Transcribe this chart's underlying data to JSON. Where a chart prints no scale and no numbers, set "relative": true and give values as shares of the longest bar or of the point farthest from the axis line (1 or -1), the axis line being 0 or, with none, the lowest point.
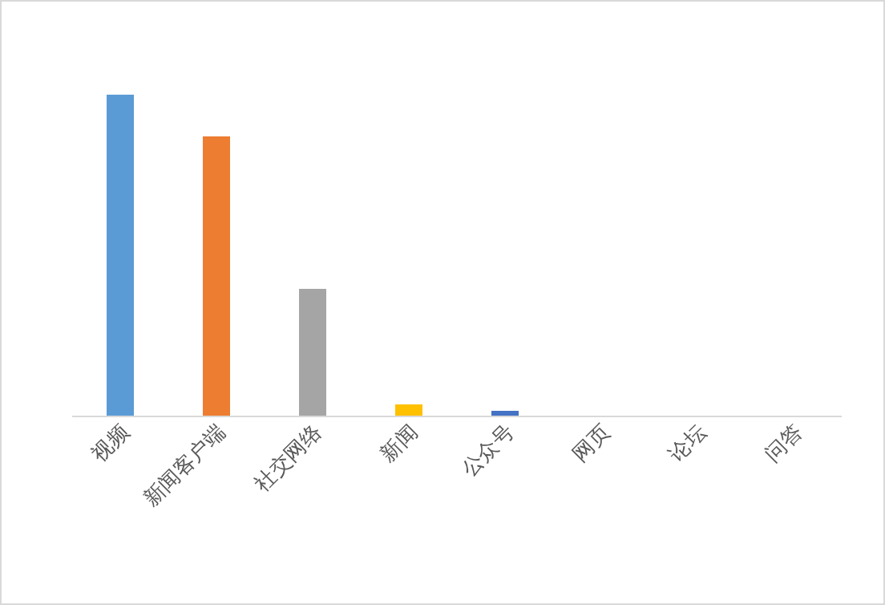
{
  "chart_data": {
    "type": "bar",
    "relative": true,
    "categories": [
      "视频",
      "新闻客户端",
      "社交网络",
      "新闻",
      "公众号",
      "网页",
      "论坛",
      "问答"
    ],
    "values": [
      1,
      0.87,
      0.395,
      0.035,
      0.015,
      0,
      0,
      0
    ],
    "colors": [
      "#5b9bd5",
      "#ed7d31",
      "#a5a5a5",
      "#ffc000",
      "#4472c4",
      "#4472c4",
      "#4472c4",
      "#4472c4"
    ]
  }
}
